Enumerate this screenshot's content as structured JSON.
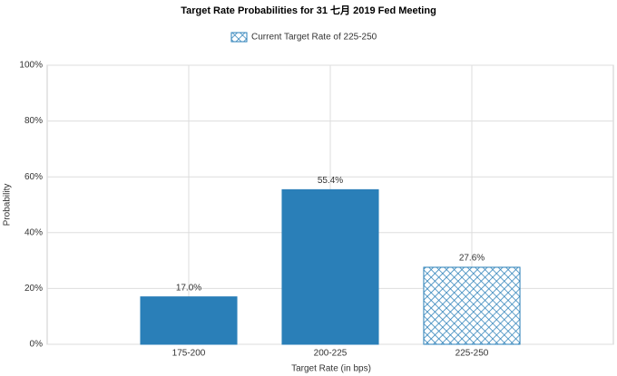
{
  "chart_data": {
    "type": "bar",
    "title": "Target Rate Probabilities for 31 七月 2019 Fed Meeting",
    "legend": "Current Target Rate of 225-250",
    "xlabel": "Target Rate (in bps)",
    "ylabel": "Probability",
    "categories": [
      "175-200",
      "200-225",
      "225-250"
    ],
    "values": [
      17.0,
      55.4,
      27.6
    ],
    "value_labels": [
      "17.0%",
      "55.4%",
      "27.6%"
    ],
    "patterns": [
      "solid",
      "solid",
      "hatch"
    ],
    "color": "#2a7fb8",
    "ylim": [
      0,
      100
    ],
    "yticks": [
      {
        "value": 0,
        "label": "0%"
      },
      {
        "value": 20,
        "label": "20%"
      },
      {
        "value": 40,
        "label": "40%"
      },
      {
        "value": 60,
        "label": "60%"
      },
      {
        "value": 80,
        "label": "80%"
      },
      {
        "value": 100,
        "label": "100%"
      }
    ],
    "grid": true
  }
}
